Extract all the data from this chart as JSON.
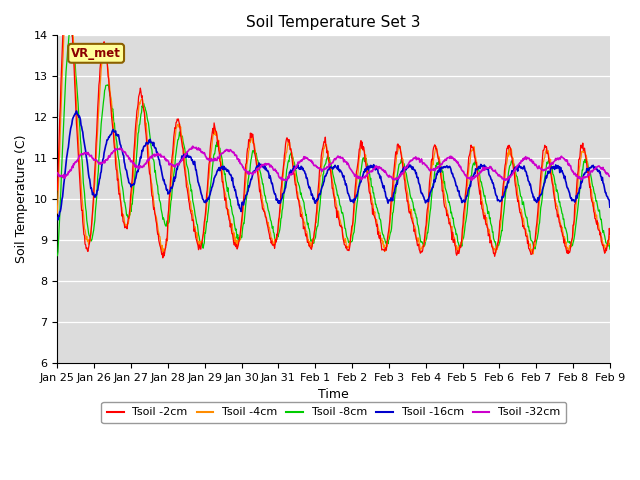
{
  "title": "Soil Temperature Set 3",
  "xlabel": "Time",
  "ylabel": "Soil Temperature (C)",
  "ylim": [
    6.0,
    14.0
  ],
  "yticks": [
    6.0,
    7.0,
    8.0,
    9.0,
    10.0,
    11.0,
    12.0,
    13.0,
    14.0
  ],
  "xtick_labels": [
    "Jan 25",
    "Jan 26",
    "Jan 27",
    "Jan 28",
    "Jan 29",
    "Jan 30",
    "Jan 31",
    "Feb 1",
    "Feb 2",
    "Feb 3",
    "Feb 4",
    "Feb 5",
    "Feb 6",
    "Feb 7",
    "Feb 8",
    "Feb 9"
  ],
  "colors": {
    "Tsoil -2cm": "#FF0000",
    "Tsoil -4cm": "#FF8C00",
    "Tsoil -8cm": "#00CC00",
    "Tsoil -16cm": "#0000CC",
    "Tsoil -32cm": "#CC00CC"
  },
  "legend_label": "VR_met",
  "background_color": "#DCDCDC",
  "n_points": 960
}
